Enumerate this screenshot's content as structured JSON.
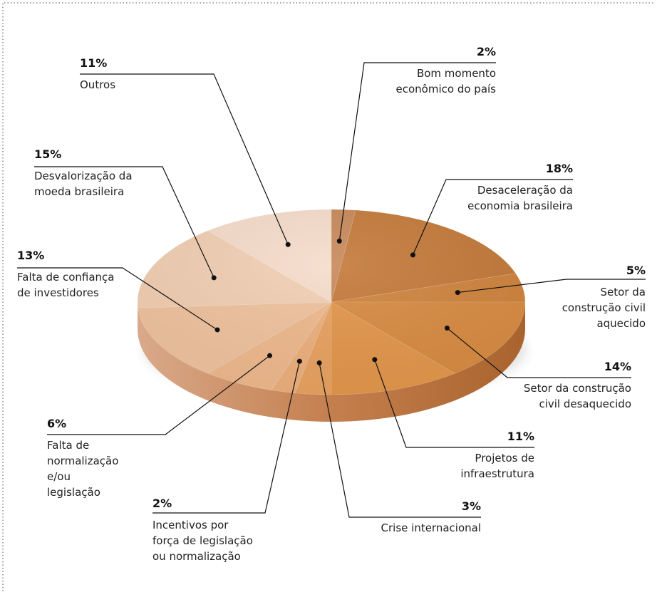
{
  "chart_data": {
    "type": "pie",
    "title": "",
    "slices": [
      {
        "pct": "2%",
        "value": 2,
        "label": [
          "Bom momento",
          "econômico do país"
        ],
        "color": "#c8895a"
      },
      {
        "pct": "18%",
        "value": 18,
        "label": [
          "Desaceleração da",
          "economia brasileira"
        ],
        "color": "#c47a3a"
      },
      {
        "pct": "5%",
        "value": 5,
        "label": [
          "Setor da",
          "construção civil",
          "aquecido"
        ],
        "color": "#d0843e"
      },
      {
        "pct": "14%",
        "value": 14,
        "label": [
          "Setor da construção",
          "civil desaquecido"
        ],
        "color": "#d98c43"
      },
      {
        "pct": "11%",
        "value": 11,
        "label": [
          "Projetos de",
          "infraestrutura"
        ],
        "color": "#e4974c"
      },
      {
        "pct": "3%",
        "value": 3,
        "label": [
          "Crise internacional"
        ],
        "color": "#e9a361"
      },
      {
        "pct": "2%",
        "value": 2,
        "label": [
          "Incentivos por",
          "força de legislação",
          "ou normalização"
        ],
        "color": "#eeb07d"
      },
      {
        "pct": "6%",
        "value": 6,
        "label": [
          "Falta de",
          "normalização",
          "e/ou",
          "legislação"
        ],
        "color": "#f0ba8e"
      },
      {
        "pct": "13%",
        "value": 13,
        "label": [
          "Falta de confiança",
          "de investidores"
        ],
        "color": "#f0c39f"
      },
      {
        "pct": "15%",
        "value": 15,
        "label": [
          "Desvalorização da",
          "moeda brasileira"
        ],
        "color": "#f2cfb3"
      },
      {
        "pct": "11%",
        "value": 11,
        "label": [
          "Outros"
        ],
        "color": "#f6dccb"
      }
    ]
  }
}
